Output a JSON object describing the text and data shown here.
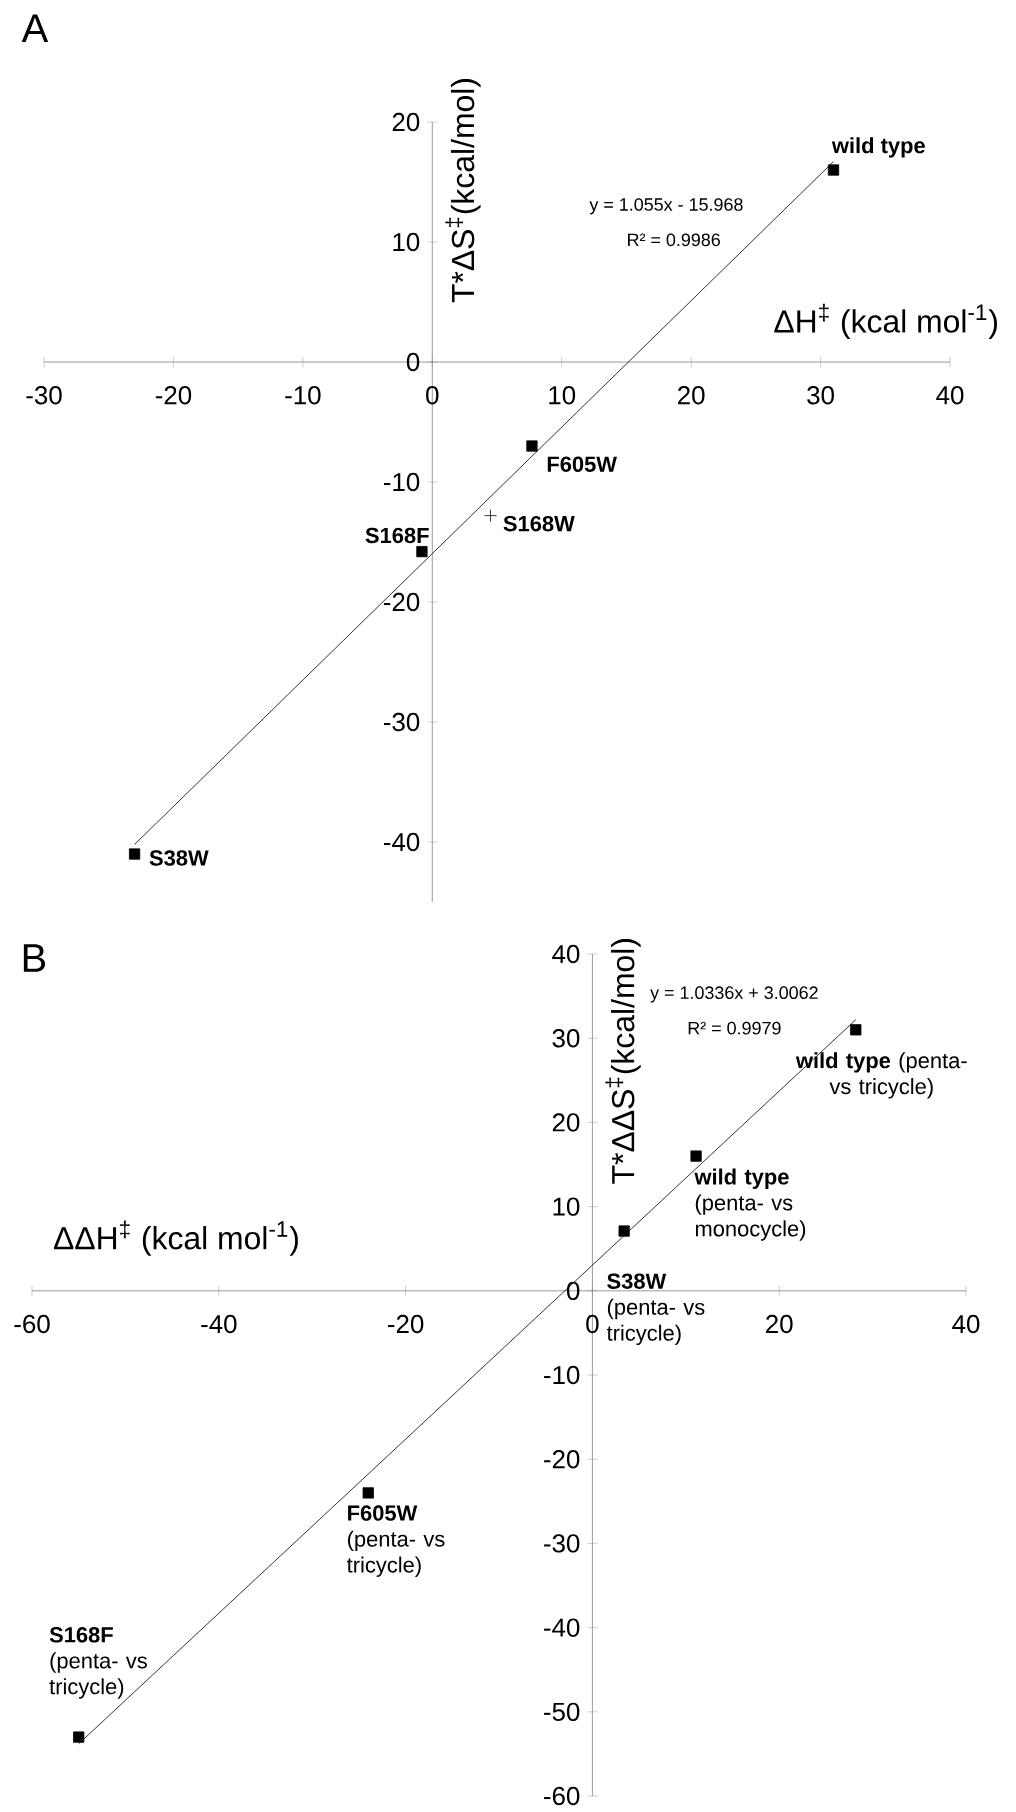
{
  "chart_data": [
    {
      "type": "scatter",
      "title": "A",
      "xlabel": "ΔH$^{‡}$ (kcal mol$^{-1}$)",
      "ylabel": "T*ΔS$^{‡}$(kcal/mol)",
      "xlim": [
        -30,
        40
      ],
      "ylim": [
        -45,
        20
      ],
      "xticks": [
        -30,
        -20,
        -10,
        0,
        10,
        20,
        30,
        40
      ],
      "yticks": [
        -40,
        -30,
        -20,
        -10,
        0,
        10,
        20
      ],
      "series": [
        {
          "marker": "square",
          "color": "#000000",
          "x": [
            31,
            7.7,
            -0.8,
            -23
          ],
          "values": [
            16,
            -7,
            -15.8,
            -41
          ]
        },
        {
          "marker": "cross",
          "color": "#000000",
          "x": [
            4.5
          ],
          "values": [
            -12.8
          ]
        },
        {
          "type": "line",
          "marker": "none",
          "color": "#000000",
          "x": [
            -23,
            31
          ],
          "values": [
            -40.2,
            16.7
          ]
        }
      ],
      "annotations": [
        {
          "text": "wild type",
          "x": 31,
          "y": 16
        },
        {
          "text": "F605W",
          "x": 7.7,
          "y": -7
        },
        {
          "text": "S168W",
          "x": 4.5,
          "y": -12.8
        },
        {
          "text": "S168F",
          "x": -0.8,
          "y": -15.8
        },
        {
          "text": "S38W",
          "x": -23,
          "y": -41
        },
        "y = 1.055x - 15.968",
        "R² = 0.9986"
      ]
    },
    {
      "type": "scatter",
      "title": "B",
      "xlabel": "ΔΔH$^{‡}$ (kcal mol$^{-1}$)",
      "ylabel": "T*ΔΔS$^{‡}$(kcal/mol)",
      "xlim": [
        -60,
        40
      ],
      "ylim": [
        -60,
        40
      ],
      "xticks": [
        -60,
        -40,
        -20,
        0,
        20,
        40
      ],
      "yticks": [
        -60,
        -50,
        -40,
        -30,
        -20,
        -10,
        0,
        10,
        20,
        30,
        40
      ],
      "series": [
        {
          "marker": "square",
          "color": "#000000",
          "x": [
            28.2,
            11.1,
            3.4,
            -24,
            -55
          ],
          "values": [
            31,
            16,
            7.1,
            -24,
            -53
          ]
        },
        {
          "type": "line",
          "marker": "none",
          "color": "#000000",
          "x": [
            -55,
            28.2
          ],
          "values": [
            -53.8,
            32.2
          ]
        }
      ],
      "annotations": [
        {
          "text": "**wild type** (penta- vs tricycle)",
          "x": 28.2,
          "y": 31
        },
        {
          "text": "**wild type** (penta- vs monocycle)",
          "x": 11.1,
          "y": 16
        },
        {
          "text": "**S38W** (penta- vs tricycle)",
          "x": 3.4,
          "y": 7.1
        },
        {
          "text": "**F605W** (penta- vs tricycle)",
          "x": -24,
          "y": -24
        },
        {
          "text": "**S168F** (penta- vs tricycle)",
          "x": -55,
          "y": -53
        },
        "y = 1.0336x + 3.0062",
        "R² = 0.9979"
      ]
    }
  ]
}
